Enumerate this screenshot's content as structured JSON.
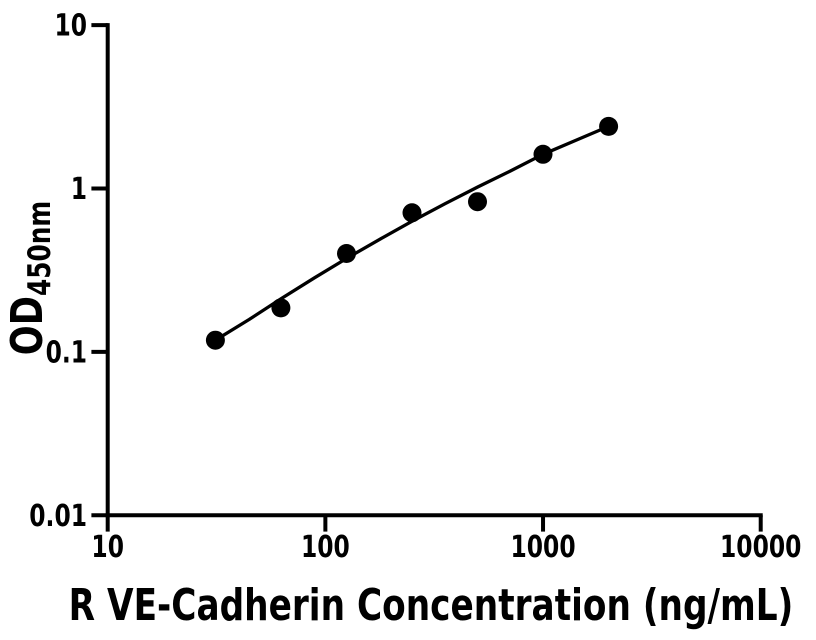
{
  "figure": {
    "background_color": "#ffffff",
    "ink_color": "#000000"
  },
  "chart_data": {
    "type": "scatter",
    "title": "",
    "xlabel": "R VE-Cadherin Concentration (ng/mL)",
    "ylabel_main": "OD",
    "ylabel_subscript": "450nm",
    "x_scale": "log",
    "y_scale": "log",
    "xlim": [
      10,
      10000
    ],
    "ylim": [
      0.01,
      10
    ],
    "grid": false,
    "legend_position": "none",
    "x_ticks": [
      {
        "value": 10,
        "label": "10"
      },
      {
        "value": 100,
        "label": "100"
      },
      {
        "value": 1000,
        "label": "1000"
      },
      {
        "value": 10000,
        "label": "10000"
      }
    ],
    "y_ticks": [
      {
        "value": 10,
        "label": "10"
      },
      {
        "value": 1,
        "label": "1"
      },
      {
        "value": 0.1,
        "label": "0.1"
      },
      {
        "value": 0.01,
        "label": "0.01"
      }
    ],
    "series": [
      {
        "name": "standard-points",
        "type": "scatter",
        "marker": "circle",
        "color": "#000000",
        "x": [
          31.25,
          62.5,
          125,
          250,
          500,
          1000,
          2000
        ],
        "y": [
          0.118,
          0.186,
          0.4,
          0.71,
          0.83,
          1.62,
          2.4
        ]
      },
      {
        "name": "fit-curve",
        "type": "line",
        "color": "#000000",
        "x": [
          31.25,
          44.7,
          63.1,
          89.1,
          125.9,
          177.8,
          251.2,
          354.8,
          501.2,
          707.9,
          1000,
          1412,
          2000
        ],
        "y": [
          0.118,
          0.158,
          0.213,
          0.284,
          0.375,
          0.489,
          0.632,
          0.807,
          1.022,
          1.279,
          1.62,
          1.97,
          2.4
        ]
      }
    ]
  }
}
